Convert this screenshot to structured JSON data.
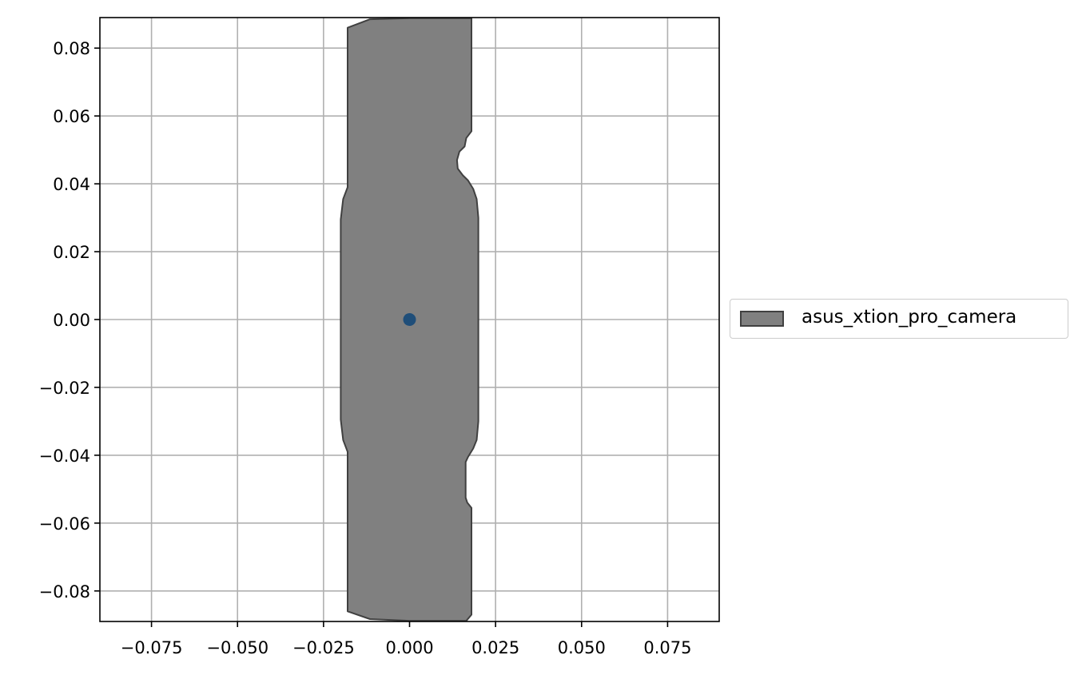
{
  "chart_data": {
    "type": "area",
    "xlim": [
      -0.09,
      0.09
    ],
    "ylim": [
      -0.089,
      0.089
    ],
    "grid": true,
    "x_ticks": [
      {
        "value": -0.075,
        "label": "−0.075"
      },
      {
        "value": -0.05,
        "label": "−0.050"
      },
      {
        "value": -0.025,
        "label": "−0.025"
      },
      {
        "value": 0.0,
        "label": "0.000"
      },
      {
        "value": 0.025,
        "label": "0.025"
      },
      {
        "value": 0.05,
        "label": "0.050"
      },
      {
        "value": 0.075,
        "label": "0.075"
      }
    ],
    "y_ticks": [
      {
        "value": 0.08,
        "label": "0.08"
      },
      {
        "value": 0.06,
        "label": "0.06"
      },
      {
        "value": 0.04,
        "label": "0.04"
      },
      {
        "value": 0.02,
        "label": "0.02"
      },
      {
        "value": 0.0,
        "label": "0.00"
      },
      {
        "value": -0.02,
        "label": "−0.02"
      },
      {
        "value": -0.04,
        "label": "−0.04"
      },
      {
        "value": -0.06,
        "label": "−0.06"
      },
      {
        "value": -0.08,
        "label": "−0.08"
      }
    ],
    "series": [
      {
        "name": "asus_xtion_pro_camera",
        "fill_color": "#808080",
        "edge_color": "#404040",
        "polygon": [
          [
            -0.018,
            0.086
          ],
          [
            -0.0115,
            0.0885
          ],
          [
            0.0,
            0.0888
          ],
          [
            0.018,
            0.0888
          ],
          [
            0.018,
            0.0555
          ],
          [
            0.0165,
            0.0535
          ],
          [
            0.016,
            0.051
          ],
          [
            0.0145,
            0.0495
          ],
          [
            0.0138,
            0.047
          ],
          [
            0.014,
            0.0445
          ],
          [
            0.0155,
            0.0425
          ],
          [
            0.017,
            0.041
          ],
          [
            0.0185,
            0.0385
          ],
          [
            0.0195,
            0.0355
          ],
          [
            0.02,
            0.03
          ],
          [
            0.02,
            -0.03
          ],
          [
            0.0195,
            -0.0355
          ],
          [
            0.0185,
            -0.038
          ],
          [
            0.017,
            -0.0405
          ],
          [
            0.0163,
            -0.042
          ],
          [
            0.0163,
            -0.0525
          ],
          [
            0.0168,
            -0.054
          ],
          [
            0.018,
            -0.0555
          ],
          [
            0.018,
            -0.087
          ],
          [
            0.0165,
            -0.0888
          ],
          [
            0.0,
            -0.0888
          ],
          [
            -0.0115,
            -0.0883
          ],
          [
            -0.018,
            -0.086
          ],
          [
            -0.018,
            -0.039
          ],
          [
            -0.0193,
            -0.0355
          ],
          [
            -0.02,
            -0.0295
          ],
          [
            -0.02,
            0.0295
          ],
          [
            -0.0193,
            0.0355
          ],
          [
            -0.018,
            0.039
          ]
        ]
      }
    ],
    "points": [
      {
        "x": 0.0,
        "y": 0.0,
        "color": "#1f4e79"
      }
    ],
    "legend": {
      "placement": "center-left-outside",
      "entries": [
        "asus_xtion_pro_camera"
      ]
    }
  }
}
